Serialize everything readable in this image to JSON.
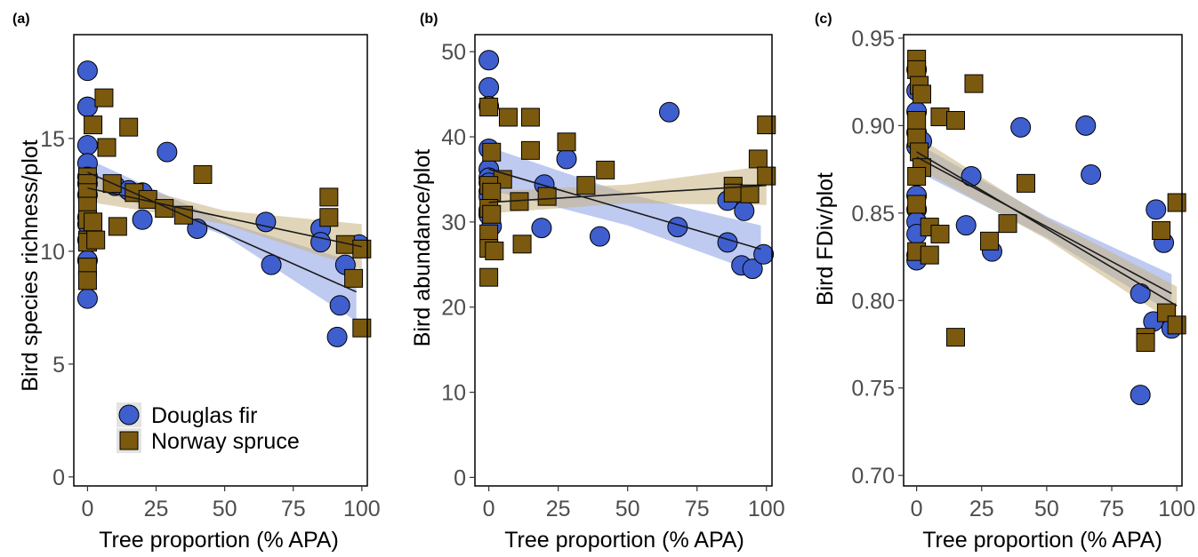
{
  "colors": {
    "douglas": "#3f5fcf",
    "spruce": "#7b5a0f",
    "douglas_band": "#8a9ee6",
    "spruce_band": "#c9b380",
    "line": "#1a1a1a"
  },
  "legend": {
    "position": "bottom-left of panel (a)"
  },
  "chart_data": [
    {
      "type": "scatter",
      "panel_label": "(a)",
      "xlabel": "Tree proportion (% APA)",
      "ylabel": "Bird species richness/plot",
      "xlim": [
        -5,
        102
      ],
      "ylim": [
        -0.4,
        19.6
      ],
      "xticks": [
        0,
        25,
        50,
        75,
        100
      ],
      "yticks": [
        0,
        5,
        10,
        15
      ],
      "grid": false,
      "series": [
        {
          "name": "Douglas fir",
          "marker": "circle",
          "points": [
            [
              0,
              18
            ],
            [
              0,
              16.4
            ],
            [
              0,
              16.4
            ],
            [
              0,
              14.7
            ],
            [
              0,
              13.9
            ],
            [
              0,
              13.3
            ],
            [
              0,
              13.0
            ],
            [
              0,
              12.5
            ],
            [
              0,
              11.5
            ],
            [
              0,
              11.2
            ],
            [
              0,
              10.5
            ],
            [
              0,
              9.6
            ],
            [
              0,
              7.9
            ],
            [
              10,
              12.9
            ],
            [
              15,
              12.7
            ],
            [
              20,
              12.6
            ],
            [
              20,
              11.4
            ],
            [
              29,
              14.4
            ],
            [
              40,
              11.0
            ],
            [
              65,
              11.3
            ],
            [
              67,
              9.4
            ],
            [
              85,
              11.0
            ],
            [
              85,
              10.4
            ],
            [
              92,
              7.6
            ],
            [
              91,
              6.2
            ],
            [
              94,
              9.4
            ],
            [
              99,
              10.3
            ]
          ],
          "fit": {
            "x": [
              0,
              98
            ],
            "y": [
              13.5,
              8.2
            ]
          },
          "band": {
            "upper": [
              [
                0,
                14.1
              ],
              [
                50,
                11.3
              ],
              [
                98,
                9.5
              ]
            ],
            "lower": [
              [
                0,
                12.9
              ],
              [
                50,
                10.7
              ],
              [
                98,
                6.9
              ]
            ]
          }
        },
        {
          "name": "Norway spruce",
          "marker": "square",
          "points": [
            [
              6,
              16.8
            ],
            [
              2,
              15.6
            ],
            [
              7,
              14.6
            ],
            [
              15,
              15.5
            ],
            [
              42,
              13.4
            ],
            [
              0,
              13.3
            ],
            [
              0,
              13.0
            ],
            [
              9,
              13.0
            ],
            [
              0,
              12.6
            ],
            [
              17,
              12.6
            ],
            [
              22,
              12.3
            ],
            [
              0,
              12.0
            ],
            [
              28,
              11.9
            ],
            [
              35,
              11.6
            ],
            [
              0,
              11.4
            ],
            [
              11,
              11.1
            ],
            [
              2,
              11.3
            ],
            [
              0,
              10.5
            ],
            [
              0,
              10.4
            ],
            [
              3,
              10.5
            ],
            [
              0,
              9.3
            ],
            [
              0,
              8.7
            ],
            [
              88,
              12.4
            ],
            [
              88,
              11.5
            ],
            [
              94,
              10.3
            ],
            [
              97,
              8.8
            ],
            [
              100,
              10.1
            ],
            [
              100,
              6.6
            ]
          ],
          "fit": {
            "x": [
              0,
              100
            ],
            "y": [
              12.8,
              10.2
            ]
          },
          "band": {
            "upper": [
              [
                0,
                13.4
              ],
              [
                50,
                11.8
              ],
              [
                100,
                11.2
              ]
            ],
            "lower": [
              [
                0,
                12.2
              ],
              [
                50,
                11.2
              ],
              [
                100,
                9.2
              ]
            ]
          }
        }
      ]
    },
    {
      "type": "scatter",
      "panel_label": "(b)",
      "xlabel": "Tree proportion (% APA)",
      "ylabel": "Bird abundance/plot",
      "xlim": [
        -5,
        102
      ],
      "ylim": [
        -1,
        52
      ],
      "xticks": [
        0,
        25,
        50,
        75,
        100
      ],
      "yticks": [
        0,
        10,
        20,
        30,
        40,
        50
      ],
      "grid": false,
      "series": [
        {
          "name": "Douglas fir",
          "marker": "circle",
          "points": [
            [
              0,
              49
            ],
            [
              0,
              45.8
            ],
            [
              0,
              43.6
            ],
            [
              0,
              38.6
            ],
            [
              0,
              36.2
            ],
            [
              0,
              35.2
            ],
            [
              0,
              34.6
            ],
            [
              0,
              33.6
            ],
            [
              0,
              33.0
            ],
            [
              0,
              31.4
            ],
            [
              0,
              31.0
            ],
            [
              0,
              30.8
            ],
            [
              1,
              29.5
            ],
            [
              20,
              34.4
            ],
            [
              19,
              29.3
            ],
            [
              28,
              37.4
            ],
            [
              40,
              28.3
            ],
            [
              65,
              42.9
            ],
            [
              68,
              29.4
            ],
            [
              86,
              32.5
            ],
            [
              86,
              27.6
            ],
            [
              92,
              31.3
            ],
            [
              91,
              24.9
            ],
            [
              95,
              24.5
            ],
            [
              99,
              26.2
            ]
          ],
          "fit": {
            "x": [
              0,
              98
            ],
            "y": [
              36.2,
              26.8
            ]
          },
          "band": {
            "upper": [
              [
                0,
                38.8
              ],
              [
                50,
                33.3
              ],
              [
                98,
                29.6
              ]
            ],
            "lower": [
              [
                0,
                33.8
              ],
              [
                50,
                29.6
              ],
              [
                98,
                23.9
              ]
            ]
          }
        },
        {
          "name": "Norway spruce",
          "marker": "square",
          "points": [
            [
              0,
              43.5
            ],
            [
              7,
              42.3
            ],
            [
              15,
              42.3
            ],
            [
              28,
              39.4
            ],
            [
              15,
              38.4
            ],
            [
              1,
              38.2
            ],
            [
              42,
              36.1
            ],
            [
              5,
              35.0
            ],
            [
              0,
              34.3
            ],
            [
              35,
              34.3
            ],
            [
              1,
              33.5
            ],
            [
              21,
              33.0
            ],
            [
              11,
              32.4
            ],
            [
              0,
              31.6
            ],
            [
              1,
              30.9
            ],
            [
              0,
              28.6
            ],
            [
              12,
              27.4
            ],
            [
              0,
              26.9
            ],
            [
              2,
              26.6
            ],
            [
              0,
              23.5
            ],
            [
              100,
              41.4
            ],
            [
              97,
              37.4
            ],
            [
              100,
              35.4
            ],
            [
              88,
              34.2
            ],
            [
              88,
              33.4
            ],
            [
              94,
              33.3
            ]
          ],
          "fit": {
            "x": [
              0,
              100
            ],
            "y": [
              32.3,
              34.3
            ]
          },
          "band": {
            "upper": [
              [
                0,
                33.6
              ],
              [
                50,
                34.4
              ],
              [
                100,
                36.6
              ]
            ],
            "lower": [
              [
                0,
                31.0
              ],
              [
                50,
                32.2
              ],
              [
                100,
                32.0
              ]
            ]
          }
        }
      ]
    },
    {
      "type": "scatter",
      "panel_label": "(c)",
      "xlabel": "Tree proportion (% APA)",
      "ylabel": "Bird FDiv/plot",
      "xlim": [
        -5,
        102
      ],
      "ylim": [
        0.694,
        0.952
      ],
      "xticks": [
        0,
        25,
        50,
        75,
        100
      ],
      "yticks": [
        0.7,
        0.75,
        0.8,
        0.85,
        0.9,
        0.95
      ],
      "grid": false,
      "series": [
        {
          "name": "Douglas fir",
          "marker": "circle",
          "points": [
            [
              0,
              0.932
            ],
            [
              0,
              0.92
            ],
            [
              0,
              0.908
            ],
            [
              0,
              0.896
            ],
            [
              0,
              0.888
            ],
            [
              0,
              0.86
            ],
            [
              0,
              0.852
            ],
            [
              0,
              0.845
            ],
            [
              0,
              0.838
            ],
            [
              0,
              0.826
            ],
            [
              0,
              0.823
            ],
            [
              2,
              0.891
            ],
            [
              21,
              0.871
            ],
            [
              19,
              0.843
            ],
            [
              29,
              0.828
            ],
            [
              40,
              0.899
            ],
            [
              65,
              0.9
            ],
            [
              67,
              0.872
            ],
            [
              86,
              0.804
            ],
            [
              86,
              0.746
            ],
            [
              92,
              0.852
            ],
            [
              91,
              0.788
            ],
            [
              95,
              0.833
            ],
            [
              98,
              0.784
            ]
          ],
          "fit": {
            "x": [
              0,
              98
            ],
            "y": [
              0.882,
              0.804
            ]
          },
          "band": {
            "upper": [
              [
                0,
                0.89
              ],
              [
                50,
                0.848
              ],
              [
                98,
                0.815
              ]
            ],
            "lower": [
              [
                0,
                0.874
              ],
              [
                50,
                0.836
              ],
              [
                98,
                0.793
              ]
            ]
          }
        },
        {
          "name": "Norway spruce",
          "marker": "square",
          "points": [
            [
              0,
              0.938
            ],
            [
              0,
              0.932
            ],
            [
              1,
              0.923
            ],
            [
              2,
              0.918
            ],
            [
              0,
              0.903
            ],
            [
              0,
              0.893
            ],
            [
              1,
              0.885
            ],
            [
              2,
              0.876
            ],
            [
              0,
              0.871
            ],
            [
              0,
              0.855
            ],
            [
              0,
              0.828
            ],
            [
              9,
              0.905
            ],
            [
              15,
              0.903
            ],
            [
              22,
              0.924
            ],
            [
              42,
              0.867
            ],
            [
              5,
              0.842
            ],
            [
              9,
              0.838
            ],
            [
              5,
              0.826
            ],
            [
              28,
              0.834
            ],
            [
              35,
              0.844
            ],
            [
              15,
              0.779
            ],
            [
              88,
              0.779
            ],
            [
              88,
              0.776
            ],
            [
              94,
              0.84
            ],
            [
              96,
              0.793
            ],
            [
              100,
              0.856
            ],
            [
              100,
              0.786
            ]
          ],
          "fit": {
            "x": [
              0,
              100
            ],
            "y": [
              0.885,
              0.797
            ]
          },
          "band": {
            "upper": [
              [
                0,
                0.894
              ],
              [
                50,
                0.847
              ],
              [
                100,
                0.808
              ]
            ],
            "lower": [
              [
                0,
                0.876
              ],
              [
                50,
                0.835
              ],
              [
                100,
                0.786
              ]
            ]
          }
        }
      ]
    }
  ]
}
